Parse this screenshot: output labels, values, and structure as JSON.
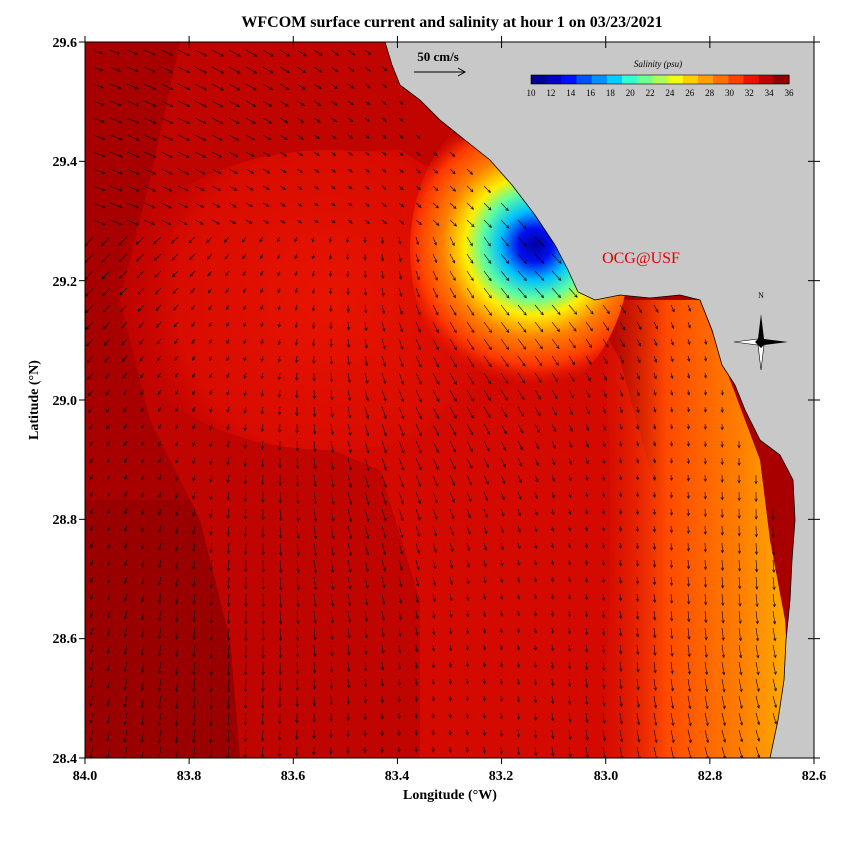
{
  "title": "WFCOM surface current and salinity at hour 1 on 03/23/2021",
  "x_axis": {
    "label": "Longitude (°W)",
    "ticks": [
      "84.0",
      "83.8",
      "83.6",
      "83.4",
      "83.2",
      "83.0",
      "82.8",
      "82.6"
    ]
  },
  "y_axis": {
    "label": "Latitude (°N)",
    "ticks": [
      "29.6",
      "29.4",
      "29.2",
      "29.0",
      "28.8",
      "28.6",
      "28.4"
    ]
  },
  "scale_arrow": {
    "label": "50 cm/s"
  },
  "colorbar": {
    "title": "Salinity (psu)",
    "ticks": [
      "10",
      "12",
      "14",
      "16",
      "18",
      "20",
      "22",
      "24",
      "26",
      "28",
      "30",
      "32",
      "34",
      "36"
    ],
    "colors": [
      "#00008f",
      "#0000c8",
      "#0010ff",
      "#0050ff",
      "#0090ff",
      "#00d0ff",
      "#30ffd0",
      "#70ff90",
      "#b0ff50",
      "#f0ff10",
      "#ffd000",
      "#ffa000",
      "#ff7000",
      "#ff4000",
      "#f01000",
      "#c00000",
      "#900000"
    ]
  },
  "watermark": "OCG@USF",
  "compass": {
    "north_label": "N"
  },
  "colors": {
    "land": "#c8c8c8",
    "deep_red": "#a10000",
    "red": "#e01000",
    "orange_red": "#ff4000",
    "orange": "#ff7a00",
    "yellow": "#ffe800",
    "cyan": "#00e8d0",
    "blue": "#0000d0",
    "watermark": "#e00000"
  }
}
